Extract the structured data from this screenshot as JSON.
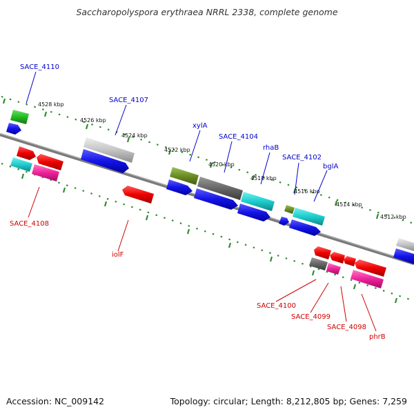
{
  "title": "Saccharopolyspora erythraea NRRL 2338, complete genome",
  "footer": {
    "accession": "Accession: NC_009142",
    "topology": "Topology: circular; Length: 8,212,805 bp; Genes: 7,259"
  },
  "ruler_ticks": [
    "4528 kbp",
    "4526 kbp",
    "4524 kbp",
    "4522 kbp",
    "4520 kbp",
    "4518 kbp",
    "4516 kbp",
    "4514 kbp",
    "4512 kbp"
  ],
  "colors": {
    "forward_label": "#0000cc",
    "reverse_label": "#cc0000",
    "backbone": "#777777",
    "ruler": "#2e8b2e",
    "cds": "#1414e6"
  },
  "labels": {
    "forward": [
      "SACE_4110",
      "SACE_4107",
      "xylA",
      "SACE_4104",
      "rhaB",
      "SACE_4102",
      "bglA"
    ],
    "reverse": [
      "SACE_4108",
      "iolF",
      "SACE_4100",
      "SACE_4099",
      "SACE_4098",
      "phrB"
    ]
  }
}
